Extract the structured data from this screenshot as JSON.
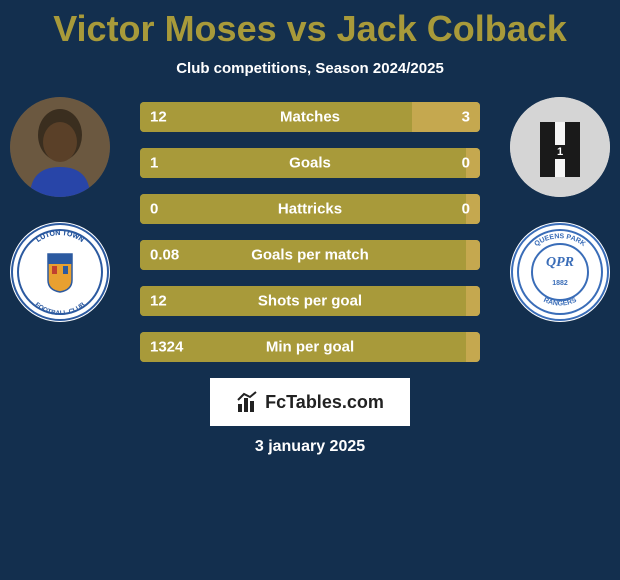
{
  "title": "Victor Moses vs Jack Colback",
  "subtitle": "Club competitions, Season 2024/2025",
  "date": "3 january 2025",
  "fctables_label": "FcTables.com",
  "colors": {
    "background": "#132f4e",
    "accent": "#a89a3a",
    "bar_left": "#a89a3a",
    "bar_right": "#c5a84f",
    "text": "#ffffff"
  },
  "player_left": {
    "name": "Victor Moses",
    "club": "Luton Town Football Club",
    "club_text_lines": [
      "LUTON TOWN",
      "FOOTBALL CLUB"
    ],
    "club_badge_color": "#2c5aa0"
  },
  "player_right": {
    "name": "Jack Colback",
    "club": "Queens Park Rangers",
    "club_text_lines": [
      "QUEENS PARK",
      "RANGERS",
      "1882"
    ],
    "club_badge_color": "#3a6db8"
  },
  "stats": [
    {
      "label": "Matches",
      "left_val": "12",
      "right_val": "3",
      "left_pct": 80,
      "right_pct": 20
    },
    {
      "label": "Goals",
      "left_val": "1",
      "right_val": "0",
      "left_pct": 96,
      "right_pct": 4
    },
    {
      "label": "Hattricks",
      "left_val": "0",
      "right_val": "0",
      "left_pct": 96,
      "right_pct": 4
    },
    {
      "label": "Goals per match",
      "left_val": "0.08",
      "right_val": "",
      "left_pct": 96,
      "right_pct": 4
    },
    {
      "label": "Shots per goal",
      "left_val": "12",
      "right_val": "",
      "left_pct": 96,
      "right_pct": 4
    },
    {
      "label": "Min per goal",
      "left_val": "1324",
      "right_val": "",
      "left_pct": 96,
      "right_pct": 4
    }
  ],
  "typography": {
    "title_fontsize": 36,
    "subtitle_fontsize": 15,
    "bar_label_fontsize": 15,
    "date_fontsize": 16
  }
}
